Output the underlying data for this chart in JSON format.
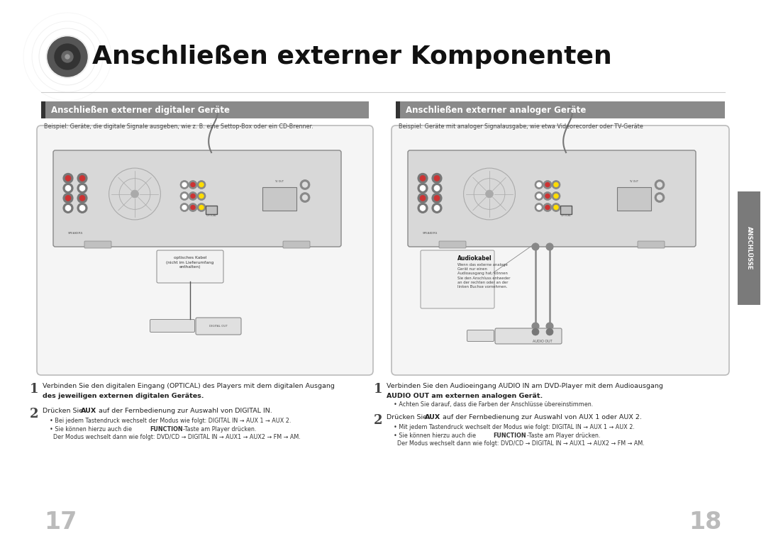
{
  "bg_color": "#ffffff",
  "page_title": "Anschließen externer Komponenten",
  "title_fontsize": 26,
  "left_section_title": "Anschließen externer digitaler Geräte",
  "right_section_title": "Anschließen externer analoger Geräte",
  "left_subtitle": "Beispiel: Geräte, die digitale Signale ausgeben, wie z. B. eine Settop-Box oder ein CD-Brenner.",
  "right_subtitle": "Beispiel: Geräte mit analoger Signalausgabe, wie etwa Videorecorder oder TV-Geräte",
  "optical_label": "optisches Kabel\n(nicht im Lieferumfang\nenthalten)",
  "audiokabel_label": "Audiokabel",
  "audiokabel_desc": "Wenn das externe analoge\nGerät nur einen\nAudioausgang hat, können\nSie den Anschluss entweder\nan der rechten oder an der\nlinken Buchse vornehmen.",
  "step1_left_line1": "Verbinden Sie den digitalen Eingang (OPTICAL) des Players mit dem digitalen Ausgang",
  "step1_left_line2": "des jeweiligen externen digitalen Gerätes.",
  "step2_left_main": "Drücken Sie AUX auf der Fernbedienung zur Auswahl von DIGITAL IN.",
  "step2_left_b1": "Bei jedem Tastendruck wechselt der Modus wie folgt: DIGITAL IN → AUX 1 → AUX 2.",
  "step2_left_b2": "Sie können hierzu auch die FUNCTION-Taste am Player drücken.",
  "step2_left_b3": "Der Modus wechselt dann wie folgt: DVD/CD → DIGITAL IN → AUX1 → AUX2 → FM → AM.",
  "step1_right_line1": "Verbinden Sie den Audioeingang AUDIO IN am DVD-Player mit dem Audioausgang",
  "step1_right_line2": "AUDIO OUT am externen analogen Gerät.",
  "step1_right_bullet": "Achten Sie darauf, dass die Farben der Anschlüsse übereinstimmen.",
  "step2_right_main": "Drücken Sie AUX auf der Fernbedienung zur Auswahl von AUX 1 oder AUX 2.",
  "step2_right_b1": "Mit jedem Tastendruck wechselt der Modus wie folgt: DIGITAL IN → AUX 1 → AUX 2.",
  "step2_right_b2": "Sie können hierzu auch die FUNCTION-Taste am Player drücken.",
  "step2_right_b3": "Der Modus wechselt dann wie folgt: DVD/CD → DIGITAL IN → AUX1 → AUX2 → FM → AM.",
  "page_num_left": "17",
  "page_num_right": "18",
  "side_tab_text": "ANSCHLÜSSE",
  "side_tab_color": "#7a7a7a",
  "section_header_color": "#8a8a8a"
}
